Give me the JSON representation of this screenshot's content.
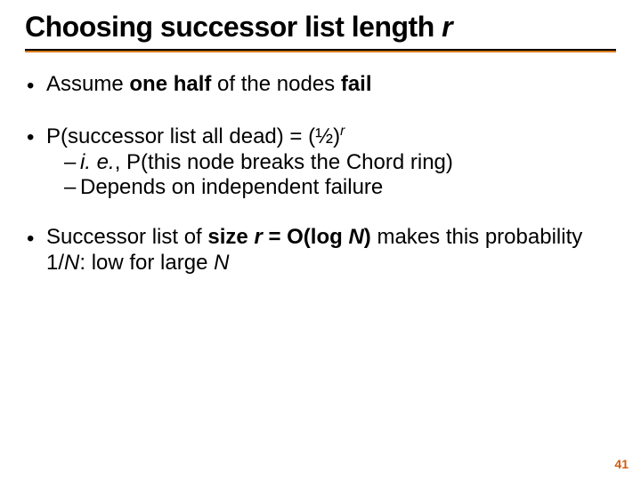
{
  "title_prefix": "Choosing successor list length ",
  "title_var": "r",
  "bullets": [
    {
      "pre": "Assume ",
      "bold1": "one half",
      "mid": " of the nodes ",
      "bold2": "fail"
    },
    {
      "main_pre": "P(successor list all dead) = ",
      "frac": "(½)",
      "exp": "r",
      "sub1_pre": "i. e.",
      "sub1_rest": ", P(this node breaks the Chord ring)",
      "sub2": "Depends on independent failure"
    },
    {
      "pre": "Successor list of ",
      "bold_size_pre": "size ",
      "bold_size_var": "r",
      "bold_eq": " = O(log ",
      "bold_N": "N",
      "bold_close": ")",
      "post_pre": " makes this probability 1/",
      "post_N": "N",
      "post_mid": ": low for large ",
      "post_N2": "N"
    }
  ],
  "page_number": "41",
  "colors": {
    "rule_orange": "#d97a1a",
    "page_num": "#cf5b12"
  }
}
